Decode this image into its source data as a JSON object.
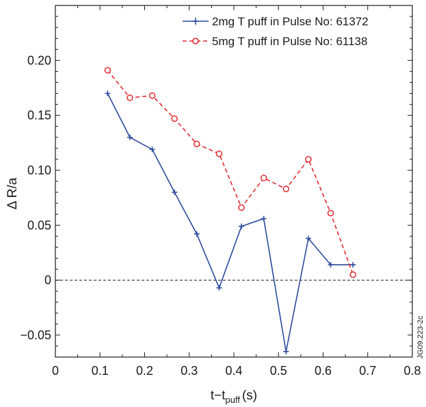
{
  "chart_data": {
    "type": "line",
    "xlabel": {
      "main": "t−t",
      "sub": "puff",
      "unit": "(s)"
    },
    "ylabel": "Δ R/a",
    "xlim": [
      0,
      0.8
    ],
    "ylim": [
      -0.07,
      0.25
    ],
    "xticks": [
      0,
      0.1,
      0.2,
      0.3,
      0.4,
      0.5,
      0.6,
      0.7,
      0.8
    ],
    "xtick_labels": [
      "0",
      "0.1",
      "0.2",
      "0.3",
      "0.4",
      "0.5",
      "0.6",
      "0.7",
      "0.8"
    ],
    "yticks": [
      -0.05,
      0,
      0.05,
      0.1,
      0.15,
      0.2
    ],
    "ytick_labels": [
      "−0.05",
      "0",
      "0.05",
      "0.10",
      "0.15",
      "0.20"
    ],
    "reference_line_y": 0,
    "grid": false,
    "legend_position": "top-right",
    "side_label": "JG09.223-2c",
    "series": [
      {
        "name": "2mg T puff in Pulse No: 61372",
        "color": "#2a4a9e",
        "line_style": "solid",
        "marker": "plus",
        "x": [
          0.117,
          0.167,
          0.217,
          0.267,
          0.317,
          0.367,
          0.417,
          0.467,
          0.517,
          0.567,
          0.617,
          0.667
        ],
        "y": [
          0.17,
          0.13,
          0.119,
          0.08,
          0.042,
          -0.007,
          0.049,
          0.056,
          -0.065,
          0.038,
          0.014,
          0.014
        ]
      },
      {
        "name": "5mg T puff in Pulse No: 61138",
        "color": "#e0282e",
        "line_style": "dashed",
        "marker": "circle",
        "x": [
          0.117,
          0.167,
          0.217,
          0.267,
          0.317,
          0.367,
          0.417,
          0.467,
          0.517,
          0.567,
          0.617,
          0.667
        ],
        "y": [
          0.191,
          0.166,
          0.168,
          0.147,
          0.124,
          0.115,
          0.066,
          0.093,
          0.083,
          0.11,
          0.061,
          0.005
        ]
      }
    ]
  }
}
